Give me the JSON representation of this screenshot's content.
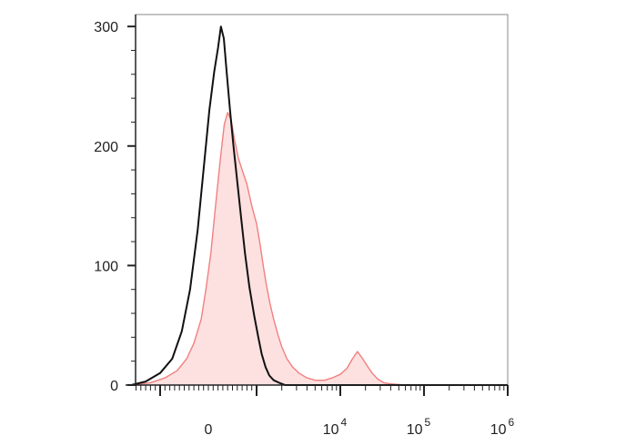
{
  "chart_data": {
    "type": "area",
    "title": "",
    "xlabel": "",
    "ylabel": "",
    "x_scale": "biexponential",
    "ylim": [
      0,
      310
    ],
    "grid": false,
    "legend": "none",
    "y_ticks": [
      {
        "value": 0,
        "label": "0"
      },
      {
        "value": 100,
        "label": "100"
      },
      {
        "value": 200,
        "label": "200"
      },
      {
        "value": 300,
        "label": "300"
      }
    ],
    "x_ticks": [
      {
        "value": 0,
        "label": "0",
        "sup": ""
      },
      {
        "value": 10000,
        "label": "10",
        "sup": "4"
      },
      {
        "value": 100000,
        "label": "10",
        "sup": "5"
      },
      {
        "value": 1000000,
        "label": "10",
        "sup": "6"
      }
    ],
    "series": [
      {
        "color": "#f08080",
        "fill": "#fde0e0",
        "filled": true,
        "points": [
          [
            -1600,
            0
          ],
          [
            -1200,
            2
          ],
          [
            -900,
            6
          ],
          [
            -650,
            12
          ],
          [
            -450,
            22
          ],
          [
            -300,
            35
          ],
          [
            -150,
            55
          ],
          [
            -50,
            80
          ],
          [
            50,
            110
          ],
          [
            150,
            150
          ],
          [
            250,
            190
          ],
          [
            330,
            218
          ],
          [
            400,
            228
          ],
          [
            470,
            222
          ],
          [
            540,
            206
          ],
          [
            620,
            190
          ],
          [
            700,
            180
          ],
          [
            800,
            168
          ],
          [
            900,
            150
          ],
          [
            1000,
            135
          ],
          [
            1100,
            118
          ],
          [
            1200,
            100
          ],
          [
            1300,
            85
          ],
          [
            1450,
            68
          ],
          [
            1600,
            55
          ],
          [
            1800,
            42
          ],
          [
            2000,
            32
          ],
          [
            2300,
            22
          ],
          [
            2700,
            15
          ],
          [
            3200,
            10
          ],
          [
            4000,
            6
          ],
          [
            5000,
            4
          ],
          [
            6500,
            4
          ],
          [
            8000,
            6
          ],
          [
            10000,
            9
          ],
          [
            12000,
            14
          ],
          [
            14000,
            22
          ],
          [
            16000,
            28
          ],
          [
            18500,
            22
          ],
          [
            21000,
            16
          ],
          [
            24000,
            10
          ],
          [
            28000,
            5
          ],
          [
            33000,
            2
          ],
          [
            40000,
            1
          ],
          [
            60000,
            0
          ],
          [
            1000000,
            0
          ]
        ]
      },
      {
        "color": "#111111",
        "fill": "none",
        "filled": false,
        "points": [
          [
            -1600,
            0
          ],
          [
            -1300,
            3
          ],
          [
            -1000,
            10
          ],
          [
            -750,
            22
          ],
          [
            -550,
            45
          ],
          [
            -380,
            80
          ],
          [
            -220,
            130
          ],
          [
            -100,
            180
          ],
          [
            20,
            230
          ],
          [
            120,
            262
          ],
          [
            200,
            282
          ],
          [
            260,
            300
          ],
          [
            320,
            290
          ],
          [
            380,
            262
          ],
          [
            450,
            230
          ],
          [
            520,
            200
          ],
          [
            600,
            170
          ],
          [
            680,
            140
          ],
          [
            760,
            110
          ],
          [
            850,
            82
          ],
          [
            950,
            58
          ],
          [
            1050,
            40
          ],
          [
            1150,
            26
          ],
          [
            1280,
            15
          ],
          [
            1420,
            8
          ],
          [
            1600,
            4
          ],
          [
            1850,
            2
          ],
          [
            2200,
            0
          ],
          [
            1000000,
            0
          ]
        ]
      }
    ]
  }
}
